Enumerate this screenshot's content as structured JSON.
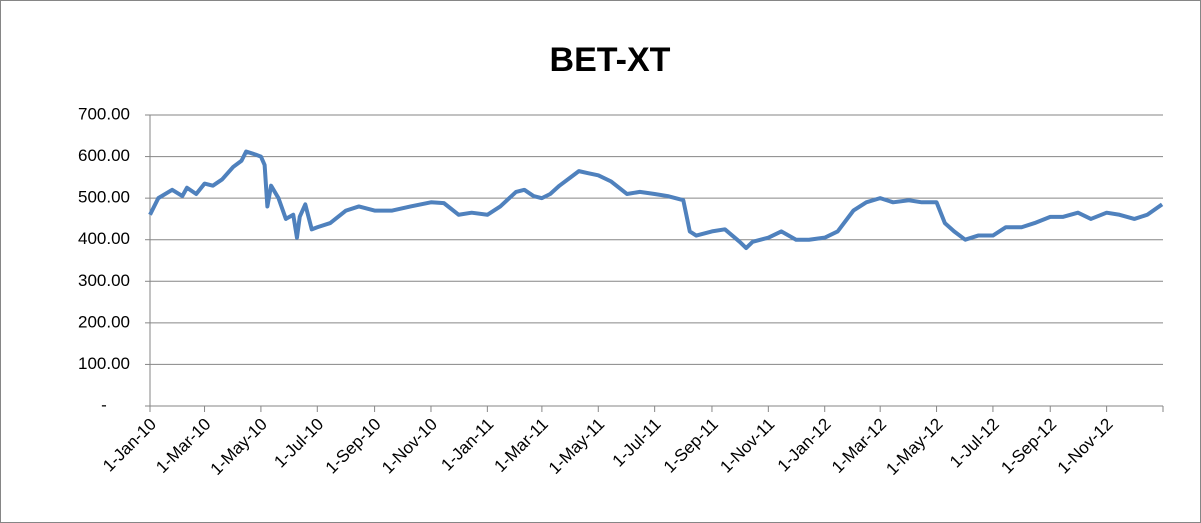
{
  "chart_data": {
    "type": "line",
    "title": "BET-XT",
    "x": [
      "2010-01-01",
      "2010-01-10",
      "2010-01-25",
      "2010-02-05",
      "2010-02-10",
      "2010-02-20",
      "2010-03-01",
      "2010-03-10",
      "2010-03-20",
      "2010-04-01",
      "2010-04-10",
      "2010-04-15",
      "2010-04-25",
      "2010-05-01",
      "2010-05-05",
      "2010-05-08",
      "2010-05-12",
      "2010-05-20",
      "2010-05-28",
      "2010-06-05",
      "2010-06-09",
      "2010-06-12",
      "2010-06-18",
      "2010-06-25",
      "2010-07-01",
      "2010-07-15",
      "2010-08-01",
      "2010-08-15",
      "2010-09-01",
      "2010-09-20",
      "2010-10-10",
      "2010-11-01",
      "2010-11-15",
      "2010-12-01",
      "2010-12-15",
      "2011-01-01",
      "2011-01-15",
      "2011-02-01",
      "2011-02-10",
      "2011-02-20",
      "2011-03-01",
      "2011-03-10",
      "2011-03-20",
      "2011-04-01",
      "2011-04-10",
      "2011-04-20",
      "2011-05-01",
      "2011-05-15",
      "2011-06-01",
      "2011-06-15",
      "2011-07-01",
      "2011-07-15",
      "2011-08-01",
      "2011-08-08",
      "2011-08-15",
      "2011-09-01",
      "2011-09-15",
      "2011-10-01",
      "2011-10-08",
      "2011-10-15",
      "2011-11-01",
      "2011-11-15",
      "2011-12-01",
      "2011-12-15",
      "2012-01-01",
      "2012-01-15",
      "2012-02-01",
      "2012-02-15",
      "2012-03-01",
      "2012-03-15",
      "2012-04-01",
      "2012-04-15",
      "2012-05-01",
      "2012-05-10",
      "2012-05-20",
      "2012-06-01",
      "2012-06-15",
      "2012-07-01",
      "2012-07-15",
      "2012-08-01",
      "2012-08-15",
      "2012-09-01",
      "2012-09-15",
      "2012-10-01",
      "2012-10-15",
      "2012-11-01",
      "2012-11-15",
      "2012-12-01",
      "2012-12-15",
      "2012-12-31"
    ],
    "series": [
      {
        "name": "BET-XT",
        "color": "#4f81bd",
        "values": [
          460,
          500,
          520,
          505,
          525,
          510,
          535,
          530,
          545,
          575,
          590,
          612,
          605,
          600,
          580,
          480,
          530,
          500,
          450,
          460,
          405,
          455,
          485,
          425,
          430,
          440,
          470,
          480,
          470,
          470,
          480,
          490,
          488,
          460,
          465,
          460,
          480,
          515,
          520,
          505,
          500,
          510,
          530,
          550,
          565,
          560,
          555,
          540,
          510,
          515,
          510,
          505,
          495,
          420,
          410,
          420,
          425,
          395,
          380,
          395,
          405,
          420,
          400,
          400,
          405,
          420,
          470,
          490,
          500,
          490,
          495,
          490,
          490,
          440,
          420,
          400,
          410,
          410,
          430,
          430,
          440,
          455,
          455,
          465,
          450,
          465,
          460,
          450,
          460,
          485
        ]
      }
    ],
    "xlim": [
      "2010-01-01",
      "2013-01-01"
    ],
    "xticks": [
      {
        "value": "2010-01-01",
        "label": "1-Jan-10"
      },
      {
        "value": "2010-03-01",
        "label": "1-Mar-10"
      },
      {
        "value": "2010-05-01",
        "label": "1-May-10"
      },
      {
        "value": "2010-07-01",
        "label": "1-Jul-10"
      },
      {
        "value": "2010-09-01",
        "label": "1-Sep-10"
      },
      {
        "value": "2010-11-01",
        "label": "1-Nov-10"
      },
      {
        "value": "2011-01-01",
        "label": "1-Jan-11"
      },
      {
        "value": "2011-03-01",
        "label": "1-Mar-11"
      },
      {
        "value": "2011-05-01",
        "label": "1-May-11"
      },
      {
        "value": "2011-07-01",
        "label": "1-Jul-11"
      },
      {
        "value": "2011-09-01",
        "label": "1-Sep-11"
      },
      {
        "value": "2011-11-01",
        "label": "1-Nov-11"
      },
      {
        "value": "2012-01-01",
        "label": "1-Jan-12"
      },
      {
        "value": "2012-03-01",
        "label": "1-Mar-12"
      },
      {
        "value": "2012-05-01",
        "label": "1-May-12"
      },
      {
        "value": "2012-07-01",
        "label": "1-Jul-12"
      },
      {
        "value": "2012-09-01",
        "label": "1-Sep-12"
      },
      {
        "value": "2012-11-01",
        "label": "1-Nov-12"
      }
    ],
    "ylim": [
      0,
      700
    ],
    "yticks": [
      {
        "value": 0,
        "label": "-"
      },
      {
        "value": 100,
        "label": "100.00"
      },
      {
        "value": 200,
        "label": "200.00"
      },
      {
        "value": 300,
        "label": "300.00"
      },
      {
        "value": 400,
        "label": "400.00"
      },
      {
        "value": 500,
        "label": "500.00"
      },
      {
        "value": 600,
        "label": "600.00"
      },
      {
        "value": 700,
        "label": "700.00"
      }
    ],
    "grid": true
  }
}
